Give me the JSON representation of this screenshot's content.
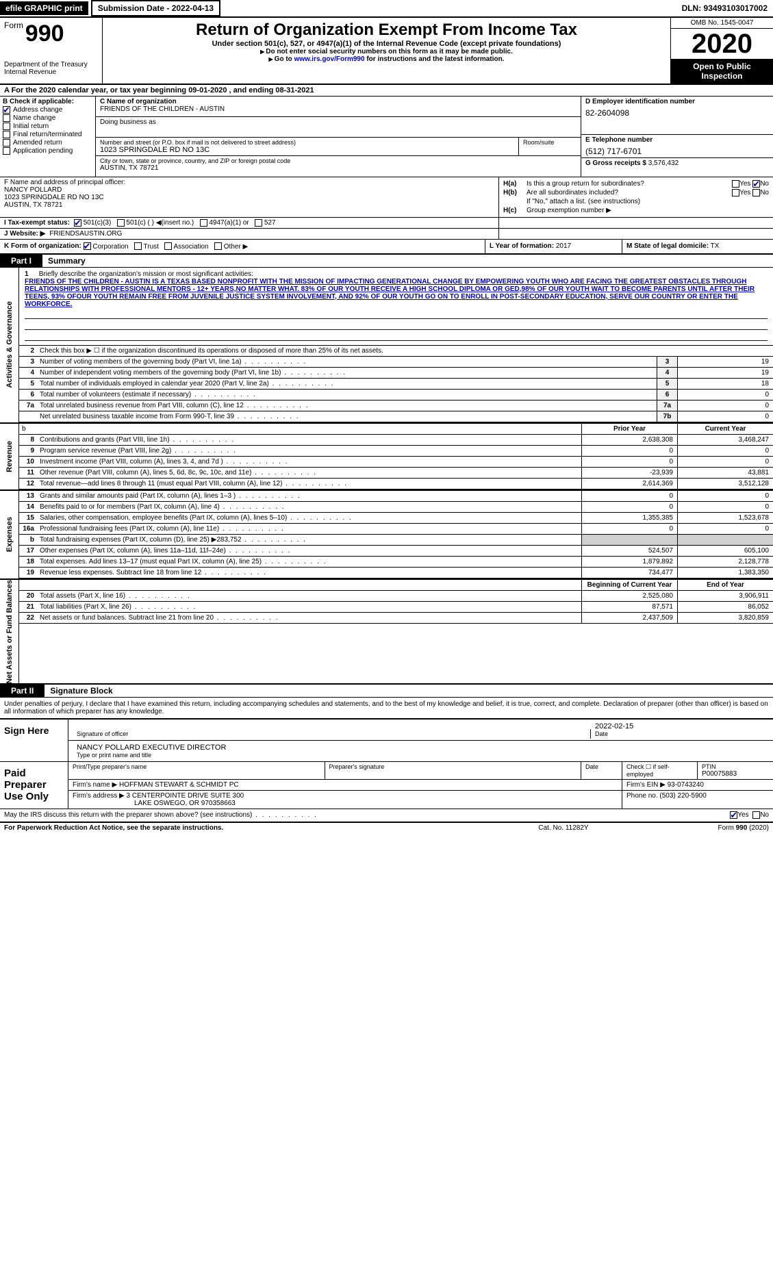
{
  "topbar": {
    "efile": "efile GRAPHIC print",
    "submission": "Submission Date - 2022-04-13",
    "dln": "DLN: 93493103017002"
  },
  "header": {
    "form_word": "Form",
    "form_num": "990",
    "dept": "Department of the Treasury\nInternal Revenue",
    "title": "Return of Organization Exempt From Income Tax",
    "sub": "Under section 501(c), 527, or 4947(a)(1) of the Internal Revenue Code (except private foundations)",
    "warn1": "Do not enter social security numbers on this form as it may be made public.",
    "warn2_pre": "Go to ",
    "warn2_link": "www.irs.gov/Form990",
    "warn2_post": " for instructions and the latest information.",
    "omb": "OMB No. 1545-0047",
    "year": "2020",
    "inspection": "Open to Public Inspection"
  },
  "row_a": "A   For the 2020 calendar year, or tax year beginning 09-01-2020    , and ending 08-31-2021",
  "col_b": {
    "hdr": "B Check if applicable:",
    "items": [
      {
        "label": "Address change",
        "checked": true
      },
      {
        "label": "Name change",
        "checked": false
      },
      {
        "label": "Initial return",
        "checked": false
      },
      {
        "label": "Final return/terminated",
        "checked": false
      },
      {
        "label": "Amended return",
        "checked": false
      },
      {
        "label": "Application pending",
        "checked": false
      }
    ]
  },
  "col_c": {
    "name_lbl": "C Name of organization",
    "name": "FRIENDS OF THE CHILDREN - AUSTIN",
    "dba_lbl": "Doing business as",
    "dba": "",
    "addr_lbl": "Number and street (or P.O. box if mail is not delivered to street address)",
    "addr": "1023 SPRINGDALE RD NO 13C",
    "room_lbl": "Room/suite",
    "city_lbl": "City or town, state or province, country, and ZIP or foreign postal code",
    "city": "AUSTIN, TX  78721"
  },
  "col_d": {
    "ein_lbl": "D Employer identification number",
    "ein": "82-2604098",
    "tel_lbl": "E Telephone number",
    "tel": "(512) 717-6701",
    "gross_lbl": "G Gross receipts $",
    "gross": "3,576,432"
  },
  "col_f": {
    "lbl": "F  Name and address of principal officer:",
    "name": "NANCY POLLARD",
    "addr1": "1023 SPRINGDALE RD NO 13C",
    "addr2": "AUSTIN, TX  78721"
  },
  "col_h": {
    "ha_lbl": "H(a)",
    "ha_txt": "Is this a group return for subordinates?",
    "ha_yes": false,
    "ha_no": true,
    "hb_lbl": "H(b)",
    "hb_txt": "Are all subordinates included?",
    "hb_note": "If \"No,\" attach a list. (see instructions)",
    "hc_lbl": "H(c)",
    "hc_txt": "Group exemption number ▶"
  },
  "row_i": {
    "lbl": "I   Tax-exempt status:",
    "opts": [
      "501(c)(3)",
      "501(c) (  ) ◀(insert no.)",
      "4947(a)(1) or",
      "527"
    ],
    "checked": 0
  },
  "row_j": {
    "lbl": "J   Website: ▶",
    "val": "FRIENDSAUSTIN.ORG"
  },
  "row_k": {
    "lbl": "K Form of organization:",
    "opts": [
      "Corporation",
      "Trust",
      "Association",
      "Other ▶"
    ],
    "checked": 0
  },
  "row_l": {
    "lbl": "L Year of formation:",
    "val": "2017"
  },
  "row_m": {
    "lbl": "M State of legal domicile:",
    "val": "TX"
  },
  "part1": {
    "tab": "Part I",
    "title": "Summary"
  },
  "mission": {
    "num": "1",
    "lbl": "Briefly describe the organization's mission or most significant activities:",
    "text": "FRIENDS OF THE CHILDREN - AUSTIN IS A TEXAS BASED NONPROFIT WITH THE MISSION OF IMPACTING GENERATIONAL CHANGE BY EMPOWERING YOUTH WHO ARE FACING THE GREATEST OBSTACLES THROUGH RELATIONSHIPS WITH PROFESSIONAL MENTORS - 12+ YEARS,NO MATTER WHAT. 83% OF OUR YOUTH RECEIVE A HIGH SCHOOL DIPLOMA OR GED,98% OF OUR YOUTH WAIT TO BECOME PARENTS UNTIL AFTER THEIR TEENS, 93% OFOUR YOUTH REMAIN FREE FROM JUVENILE JUSTICE SYSTEM INVOLVEMENT, AND 92% OF OUR YOUTH GO ON TO ENROLL IN POST-SECONDARY EDUCATION, SERVE OUR COUNTRY OR ENTER THE WORKFORCE."
  },
  "line2": "Check this box ▶ ☐  if the organization discontinued its operations or disposed of more than 25% of its net assets.",
  "gov_rows": [
    {
      "n": "3",
      "d": "Number of voting members of the governing body (Part VI, line 1a)",
      "b": "3",
      "v": "19"
    },
    {
      "n": "4",
      "d": "Number of independent voting members of the governing body (Part VI, line 1b)",
      "b": "4",
      "v": "19"
    },
    {
      "n": "5",
      "d": "Total number of individuals employed in calendar year 2020 (Part V, line 2a)",
      "b": "5",
      "v": "18"
    },
    {
      "n": "6",
      "d": "Total number of volunteers (estimate if necessary)",
      "b": "6",
      "v": "0"
    },
    {
      "n": "7a",
      "d": "Total unrelated business revenue from Part VIII, column (C), line 12",
      "b": "7a",
      "v": "0"
    },
    {
      "n": "",
      "d": "Net unrelated business taxable income from Form 990-T, line 39",
      "b": "7b",
      "v": "0"
    }
  ],
  "rev_hdr": {
    "b": "b",
    "prior": "Prior Year",
    "current": "Current Year"
  },
  "rev_rows": [
    {
      "n": "8",
      "d": "Contributions and grants (Part VIII, line 1h)",
      "p": "2,638,308",
      "c": "3,468,247"
    },
    {
      "n": "9",
      "d": "Program service revenue (Part VIII, line 2g)",
      "p": "0",
      "c": "0"
    },
    {
      "n": "10",
      "d": "Investment income (Part VIII, column (A), lines 3, 4, and 7d )",
      "p": "0",
      "c": "0"
    },
    {
      "n": "11",
      "d": "Other revenue (Part VIII, column (A), lines 5, 6d, 8c, 9c, 10c, and 11e)",
      "p": "-23,939",
      "c": "43,881"
    },
    {
      "n": "12",
      "d": "Total revenue—add lines 8 through 11 (must equal Part VIII, column (A), line 12)",
      "p": "2,614,369",
      "c": "3,512,128"
    }
  ],
  "exp_rows": [
    {
      "n": "13",
      "d": "Grants and similar amounts paid (Part IX, column (A), lines 1–3 )",
      "p": "0",
      "c": "0"
    },
    {
      "n": "14",
      "d": "Benefits paid to or for members (Part IX, column (A), line 4)",
      "p": "0",
      "c": "0"
    },
    {
      "n": "15",
      "d": "Salaries, other compensation, employee benefits (Part IX, column (A), lines 5–10)",
      "p": "1,355,385",
      "c": "1,523,678"
    },
    {
      "n": "16a",
      "d": "Professional fundraising fees (Part IX, column (A), line 11e)",
      "p": "0",
      "c": "0"
    },
    {
      "n": "b",
      "d": "Total fundraising expenses (Part IX, column (D), line 25) ▶283,752",
      "p": "",
      "c": "",
      "grey": true
    },
    {
      "n": "17",
      "d": "Other expenses (Part IX, column (A), lines 11a–11d, 11f–24e)",
      "p": "524,507",
      "c": "605,100"
    },
    {
      "n": "18",
      "d": "Total expenses. Add lines 13–17 (must equal Part IX, column (A), line 25)",
      "p": "1,879,892",
      "c": "2,128,778"
    },
    {
      "n": "19",
      "d": "Revenue less expenses. Subtract line 18 from line 12",
      "p": "734,477",
      "c": "1,383,350"
    }
  ],
  "net_hdr": {
    "prior": "Beginning of Current Year",
    "current": "End of Year"
  },
  "net_rows": [
    {
      "n": "20",
      "d": "Total assets (Part X, line 16)",
      "p": "2,525,080",
      "c": "3,906,911"
    },
    {
      "n": "21",
      "d": "Total liabilities (Part X, line 26)",
      "p": "87,571",
      "c": "86,052"
    },
    {
      "n": "22",
      "d": "Net assets or fund balances. Subtract line 21 from line 20",
      "p": "2,437,509",
      "c": "3,820,859"
    }
  ],
  "vtabs": {
    "gov": "Activities & Governance",
    "rev": "Revenue",
    "exp": "Expenses",
    "net": "Net Assets or Fund Balances"
  },
  "part2": {
    "tab": "Part II",
    "title": "Signature Block"
  },
  "penalties": "Under penalties of perjury, I declare that I have examined this return, including accompanying schedules and statements, and to the best of my knowledge and belief, it is true, correct, and complete. Declaration of preparer (other than officer) is based on all information of which preparer has any knowledge.",
  "sign": {
    "here": "Sign Here",
    "sig_lbl": "Signature of officer",
    "date": "2022-02-15",
    "date_lbl": "Date",
    "name": "NANCY POLLARD  EXECUTIVE DIRECTOR",
    "name_lbl": "Type or print name and title"
  },
  "prep": {
    "hdr": "Paid Preparer Use Only",
    "name_lbl": "Print/Type preparer's name",
    "sig_lbl": "Preparer's signature",
    "date_lbl": "Date",
    "self_lbl": "Check ☐ if self-employed",
    "ptin_lbl": "PTIN",
    "ptin": "P00075883",
    "firm_name_lbl": "Firm's name    ▶",
    "firm_name": "HOFFMAN STEWART & SCHMIDT PC",
    "firm_ein_lbl": "Firm's EIN ▶",
    "firm_ein": "93-0743240",
    "firm_addr_lbl": "Firm's address ▶",
    "firm_addr1": "3 CENTERPOINTE DRIVE SUITE 300",
    "firm_addr2": "LAKE OSWEGO, OR  970358663",
    "phone_lbl": "Phone no.",
    "phone": "(503) 220-5900"
  },
  "may": {
    "txt": "May the IRS discuss this return with the preparer shown above? (see instructions)",
    "yes": true,
    "no": false
  },
  "footer": {
    "left": "For Paperwork Reduction Act Notice, see the separate instructions.",
    "mid": "Cat. No. 11282Y",
    "right": "Form 990 (2020)"
  }
}
